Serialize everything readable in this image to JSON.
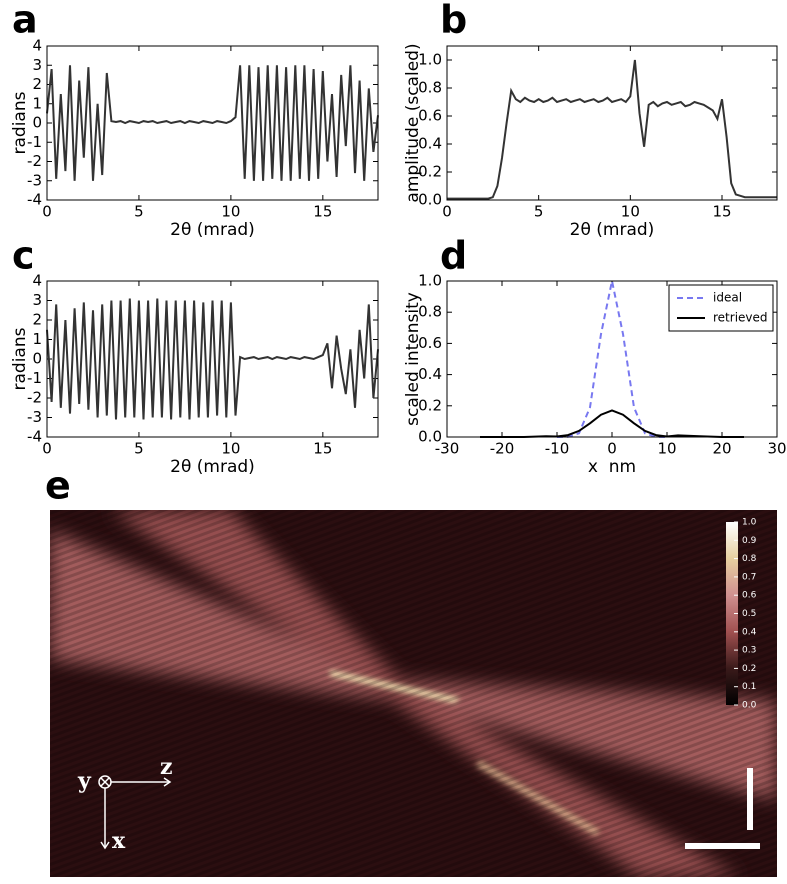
{
  "chart_data": [
    {
      "type": "line",
      "panel_label": "a",
      "x_label": "2θ (mrad)",
      "y_label": "radians",
      "xlim": [
        0,
        18
      ],
      "ylim": [
        -4,
        4
      ],
      "xticks": [
        0,
        5,
        10,
        15
      ],
      "yticks": [
        -4,
        -3,
        -2,
        -1,
        0,
        1,
        2,
        3,
        4
      ],
      "x": [
        0,
        0.25,
        0.5,
        0.75,
        1,
        1.25,
        1.5,
        1.75,
        2,
        2.25,
        2.5,
        2.75,
        3,
        3.25,
        3.5,
        3.75,
        4,
        4.25,
        4.5,
        4.75,
        5,
        5.25,
        5.5,
        5.75,
        6,
        6.25,
        6.5,
        6.75,
        7,
        7.25,
        7.5,
        7.75,
        8,
        8.25,
        8.5,
        8.75,
        9,
        9.25,
        9.5,
        9.75,
        10,
        10.25,
        10.5,
        10.75,
        11,
        11.25,
        11.5,
        11.75,
        12,
        12.25,
        12.5,
        12.75,
        13,
        13.25,
        13.5,
        13.75,
        14,
        14.25,
        14.5,
        14.75,
        15,
        15.25,
        15.5,
        15.75,
        16,
        16.25,
        16.5,
        16.75,
        17,
        17.25,
        17.5,
        17.75,
        18
      ],
      "series": [
        {
          "color": "#333333",
          "values": [
            0.5,
            2.8,
            -2.9,
            1.5,
            -2.5,
            3,
            -3,
            2.2,
            -1.8,
            2.9,
            -3,
            1,
            -2.7,
            2.6,
            0.1,
            0.05,
            0.1,
            0,
            0.1,
            0.05,
            0,
            0.1,
            0.05,
            0.1,
            0,
            0.05,
            0.1,
            0,
            0.05,
            0.1,
            0,
            0.1,
            0.05,
            0,
            0.1,
            0.05,
            0,
            0.1,
            0.05,
            0,
            0.1,
            0.3,
            3,
            -2.9,
            3,
            -3,
            2.9,
            -3,
            3,
            -2.9,
            3,
            -3,
            2.9,
            -3,
            3,
            -2.9,
            3,
            -3,
            2.8,
            -2.9,
            2.7,
            -2,
            1.5,
            -2.8,
            2.5,
            -1.2,
            3,
            -2.6,
            2.2,
            -3,
            1.8,
            -1.5,
            0.4
          ]
        }
      ]
    },
    {
      "type": "line",
      "panel_label": "b",
      "x_label": "2θ (mrad)",
      "y_label": "amplitude (scaled)",
      "xlim": [
        0,
        18
      ],
      "ylim": [
        0,
        1.1
      ],
      "xticks": [
        0,
        5,
        10,
        15
      ],
      "yticks": [
        {
          "value": 0,
          "label": "0.0"
        },
        0.2,
        0.4,
        0.6,
        0.8,
        {
          "value": 1,
          "label": "1.0"
        }
      ],
      "x": [
        0,
        0.25,
        0.5,
        0.75,
        1,
        1.25,
        1.5,
        1.75,
        2,
        2.25,
        2.5,
        2.75,
        3,
        3.25,
        3.5,
        3.75,
        4,
        4.25,
        4.5,
        4.75,
        5,
        5.25,
        5.5,
        5.75,
        6,
        6.25,
        6.5,
        6.75,
        7,
        7.25,
        7.5,
        7.75,
        8,
        8.25,
        8.5,
        8.75,
        9,
        9.25,
        9.5,
        9.75,
        10,
        10.25,
        10.5,
        10.75,
        11,
        11.25,
        11.5,
        11.75,
        12,
        12.25,
        12.5,
        12.75,
        13,
        13.25,
        13.5,
        13.75,
        14,
        14.25,
        14.5,
        14.75,
        15,
        15.25,
        15.5,
        15.75,
        16,
        16.25,
        16.5,
        16.75,
        17,
        17.25,
        17.5,
        17.75,
        18
      ],
      "series": [
        {
          "color": "#333333",
          "values": [
            0.01,
            0.01,
            0.01,
            0.01,
            0.01,
            0.01,
            0.01,
            0.01,
            0.01,
            0.01,
            0.02,
            0.1,
            0.3,
            0.55,
            0.78,
            0.72,
            0.7,
            0.73,
            0.71,
            0.7,
            0.72,
            0.7,
            0.71,
            0.73,
            0.7,
            0.71,
            0.72,
            0.7,
            0.71,
            0.72,
            0.7,
            0.71,
            0.72,
            0.7,
            0.71,
            0.73,
            0.7,
            0.71,
            0.72,
            0.7,
            0.74,
            1.0,
            0.62,
            0.38,
            0.68,
            0.7,
            0.67,
            0.69,
            0.7,
            0.68,
            0.69,
            0.7,
            0.67,
            0.68,
            0.7,
            0.69,
            0.68,
            0.66,
            0.64,
            0.58,
            0.72,
            0.45,
            0.12,
            0.04,
            0.03,
            0.02,
            0.02,
            0.02,
            0.02,
            0.02,
            0.02,
            0.02,
            0.02
          ]
        }
      ]
    },
    {
      "type": "line",
      "panel_label": "c",
      "x_label": "2θ (mrad)",
      "y_label": "radians",
      "xlim": [
        0,
        18
      ],
      "ylim": [
        -4,
        4
      ],
      "xticks": [
        0,
        5,
        10,
        15
      ],
      "yticks": [
        -4,
        -3,
        -2,
        -1,
        0,
        1,
        2,
        3,
        4
      ],
      "x": [
        0,
        0.25,
        0.5,
        0.75,
        1,
        1.25,
        1.5,
        1.75,
        2,
        2.25,
        2.5,
        2.75,
        3,
        3.25,
        3.5,
        3.75,
        4,
        4.25,
        4.5,
        4.75,
        5,
        5.25,
        5.5,
        5.75,
        6,
        6.25,
        6.5,
        6.75,
        7,
        7.25,
        7.5,
        7.75,
        8,
        8.25,
        8.5,
        8.75,
        9,
        9.25,
        9.5,
        9.75,
        10,
        10.25,
        10.5,
        10.75,
        11,
        11.25,
        11.5,
        11.75,
        12,
        12.25,
        12.5,
        12.75,
        13,
        13.25,
        13.5,
        13.75,
        14,
        14.25,
        14.5,
        14.75,
        15,
        15.25,
        15.5,
        15.75,
        16,
        16.25,
        16.5,
        16.75,
        17,
        17.25,
        17.5,
        17.75,
        18
      ],
      "series": [
        {
          "color": "#333333",
          "values": [
            1.5,
            -2.2,
            2.8,
            -2.5,
            2,
            -2.8,
            2.6,
            -2.3,
            2.9,
            -2.6,
            2.5,
            -3,
            2.8,
            -2.9,
            3,
            -3.1,
            3,
            -3,
            3.1,
            -3,
            3,
            -3.1,
            3,
            -3,
            3.1,
            -3,
            3,
            -3.1,
            3,
            -3,
            3,
            -3.1,
            3,
            -3,
            2.9,
            -3,
            3,
            -2.9,
            3,
            -3,
            2.9,
            -2.9,
            0.1,
            0,
            0.05,
            0.1,
            0,
            0.05,
            0.1,
            0,
            0.1,
            0.05,
            0,
            0.1,
            0.05,
            0,
            0.1,
            0.05,
            0,
            0.1,
            0.2,
            0.8,
            -1.5,
            1.2,
            -0.5,
            -1.8,
            0.5,
            -2.5,
            1.5,
            -1,
            2.8,
            -2,
            0.5
          ]
        }
      ]
    },
    {
      "type": "line",
      "panel_label": "d",
      "x_label": "x  nm",
      "y_label": "scaled intensity",
      "xlim": [
        -30,
        30
      ],
      "ylim": [
        0,
        1
      ],
      "xticks": [
        -30,
        -20,
        -10,
        0,
        10,
        20,
        30
      ],
      "yticks": [
        {
          "value": 0,
          "label": "0.0"
        },
        0.2,
        0.4,
        0.6,
        0.8,
        {
          "value": 1,
          "label": "1.0"
        }
      ],
      "legend": "upper right",
      "x": [
        -24,
        -20,
        -16,
        -12,
        -10,
        -8,
        -6,
        -4,
        -2,
        0,
        2,
        4,
        6,
        8,
        10,
        12,
        16,
        20,
        24
      ],
      "series": [
        {
          "name": "ideal",
          "color": "#7878f0",
          "dashed": true,
          "values": [
            null,
            null,
            null,
            null,
            0,
            0.001,
            0.024,
            0.19,
            0.66,
            1.0,
            0.66,
            0.19,
            0.024,
            0.001,
            0,
            null,
            null,
            null,
            null
          ]
        },
        {
          "name": "retrieved",
          "color": "#000000",
          "values": [
            0,
            0,
            0,
            0.005,
            0.003,
            0.012,
            0.039,
            0.088,
            0.143,
            0.17,
            0.143,
            0.088,
            0.039,
            0.012,
            0.003,
            0.01,
            0.005,
            0,
            0
          ]
        }
      ]
    },
    {
      "type": "heatmap",
      "panel_label": "e",
      "clim": [
        0,
        1
      ],
      "colorbar_ticks": [
        {
          "value": 0,
          "label": "0.0"
        },
        0.1,
        0.2,
        0.3,
        0.4,
        0.5,
        0.6,
        0.7,
        0.8,
        0.9,
        {
          "value": 1,
          "label": "1.0"
        }
      ],
      "axes_labels": [
        "y",
        "z",
        "x"
      ]
    }
  ]
}
